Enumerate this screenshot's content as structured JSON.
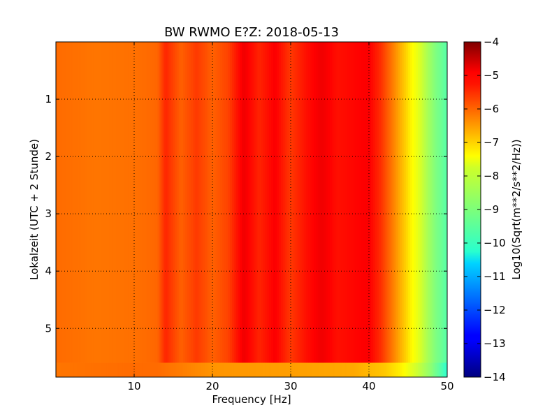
{
  "chart_data": {
    "type": "heatmap",
    "title": "BW RWMO E?Z: 2018-05-13",
    "xlabel": "Frequency [Hz]",
    "ylabel": "Lokalzeit (UTC + 2 Stunde)",
    "xlim": [
      0,
      50
    ],
    "ylim": [
      5.85,
      0
    ],
    "x_ticks": [
      10,
      20,
      30,
      40,
      50
    ],
    "y_ticks": [
      1,
      2,
      3,
      4,
      5
    ],
    "grid": true,
    "colorbar": {
      "label": "Log10(Sqrt(m**2/s**2/Hz))",
      "range": [
        -14,
        -4
      ],
      "ticks": [
        -4,
        -5,
        -6,
        -7,
        -8,
        -9,
        -10,
        -11,
        -12,
        -13,
        -14
      ],
      "colormap": "jet"
    },
    "spectrum": {
      "frequency_hz": [
        0,
        5,
        10,
        13,
        14,
        16,
        18,
        20,
        22,
        24,
        26,
        28,
        30,
        32,
        34,
        36,
        38,
        40,
        41.5,
        42.5,
        43.5,
        44.5,
        45.5,
        46.5,
        47.5,
        48.5,
        50
      ],
      "log10_amplitude": [
        -6.3,
        -6.4,
        -6.35,
        -6.25,
        -5.6,
        -6.2,
        -5.8,
        -6.2,
        -5.9,
        -5.1,
        -5.6,
        -5.2,
        -5.8,
        -5.4,
        -5.1,
        -5.4,
        -5.3,
        -5.2,
        -5.7,
        -6.2,
        -6.7,
        -7.2,
        -7.7,
        -8.1,
        -8.6,
        -9.0,
        -9.4
      ]
    },
    "bottom_band": {
      "y_range": [
        5.6,
        5.85
      ],
      "frequency_hz": [
        0,
        10,
        13,
        20,
        30,
        38,
        42,
        44,
        46,
        48,
        50
      ],
      "log10_amplitude": [
        -6.4,
        -6.3,
        -6.3,
        -6.7,
        -6.8,
        -6.9,
        -7.2,
        -7.6,
        -8.2,
        -8.9,
        -9.8
      ]
    }
  }
}
